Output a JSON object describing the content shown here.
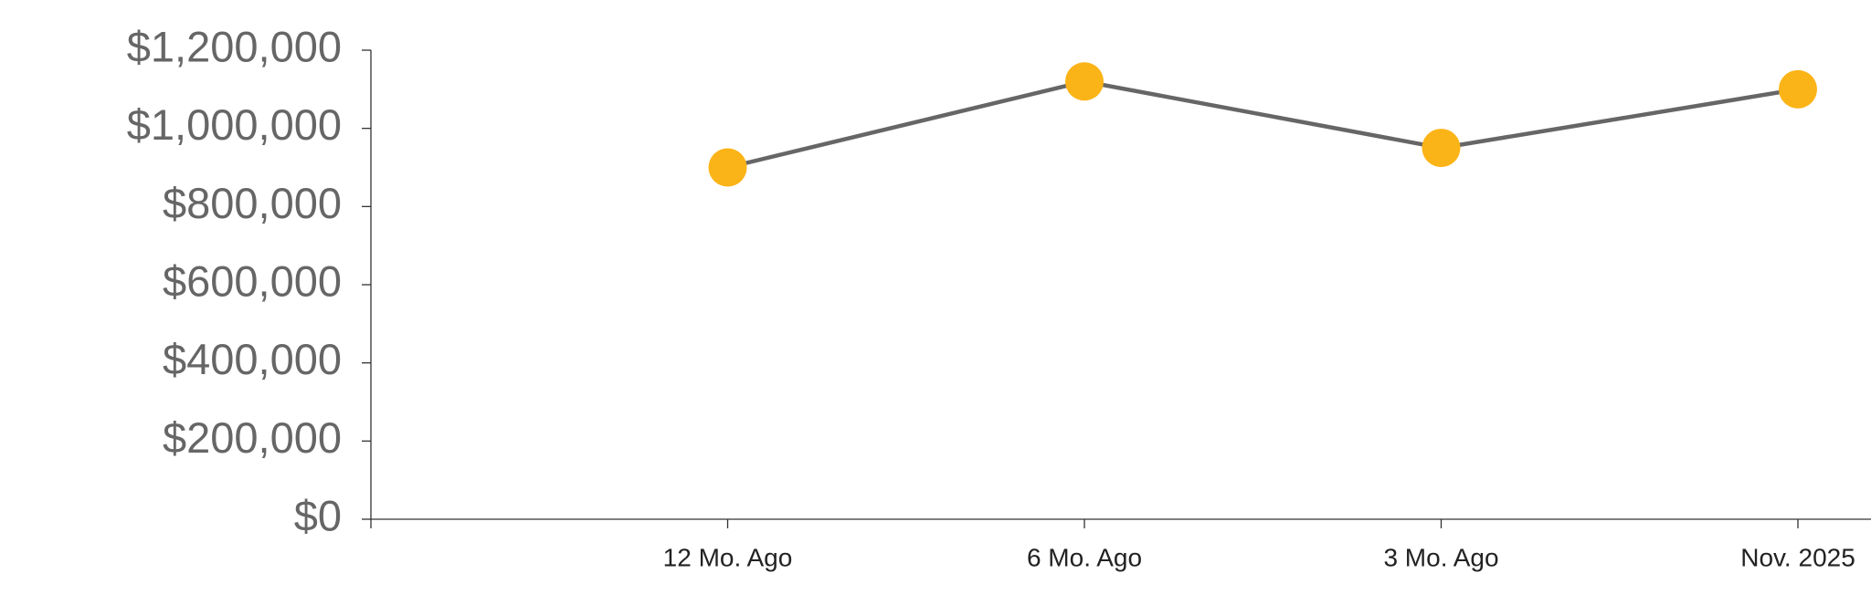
{
  "chart_data": {
    "type": "line",
    "categories": [
      null,
      "12 Mo. Ago",
      "6 Mo. Ago",
      "3 Mo. Ago",
      "Nov. 2025"
    ],
    "series": [
      {
        "name": null,
        "color": "#666666",
        "marker_color": "#fbb417",
        "values": [
          null,
          900000,
          1120000,
          950000,
          1100000
        ]
      }
    ],
    "ylim": [
      0,
      1200000
    ],
    "yticks": [
      {
        "value": 0,
        "label": "$0"
      },
      {
        "value": 200000,
        "label": "$200,000"
      },
      {
        "value": 400000,
        "label": "$400,000"
      },
      {
        "value": 600000,
        "label": "$600,000"
      },
      {
        "value": 800000,
        "label": "$800,000"
      },
      {
        "value": 1000000,
        "label": "$1,000,000"
      },
      {
        "value": 1200000,
        "label": "$1,200,000"
      }
    ],
    "grid": false
  }
}
